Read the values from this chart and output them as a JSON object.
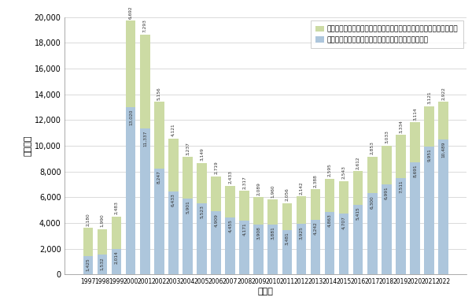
{
  "years": [
    1997,
    1998,
    1999,
    2000,
    2001,
    2002,
    2003,
    2004,
    2005,
    2006,
    2007,
    2008,
    2009,
    2010,
    2011,
    2012,
    2013,
    2014,
    2015,
    2016,
    2017,
    2018,
    2019,
    2020,
    2021,
    2022
  ],
  "blue_values": [
    1425,
    1532,
    2014,
    13020,
    11337,
    8247,
    6433,
    5901,
    5523,
    4909,
    4455,
    4171,
    3908,
    3881,
    3481,
    3925,
    4242,
    4863,
    4707,
    5415,
    6300,
    6991,
    7511,
    8691,
    9951,
    10489
  ],
  "green_values": [
    2180,
    1990,
    2483,
    6692,
    7293,
    5156,
    4121,
    3237,
    3149,
    2719,
    2433,
    2317,
    2089,
    1960,
    2056,
    2142,
    2388,
    2595,
    2543,
    2612,
    2853,
    3033,
    3334,
    3114,
    3121,
    2922
  ],
  "blue_color": "#adc6dc",
  "green_color": "#ccdba4",
  "blue_label": "ビジネス関連発明自体を主要な特徴とする出願の件数",
  "green_label": "ビジネス関連発明ではあるが、他技術に主要な特徴がある出願の件数",
  "ylabel": "出願件数",
  "xlabel": "出願年",
  "ylim": [
    0,
    20000
  ],
  "yticks": [
    0,
    2000,
    4000,
    6000,
    8000,
    10000,
    12000,
    14000,
    16000,
    18000,
    20000
  ],
  "figsize": [
    6.0,
    3.82
  ],
  "dpi": 100
}
